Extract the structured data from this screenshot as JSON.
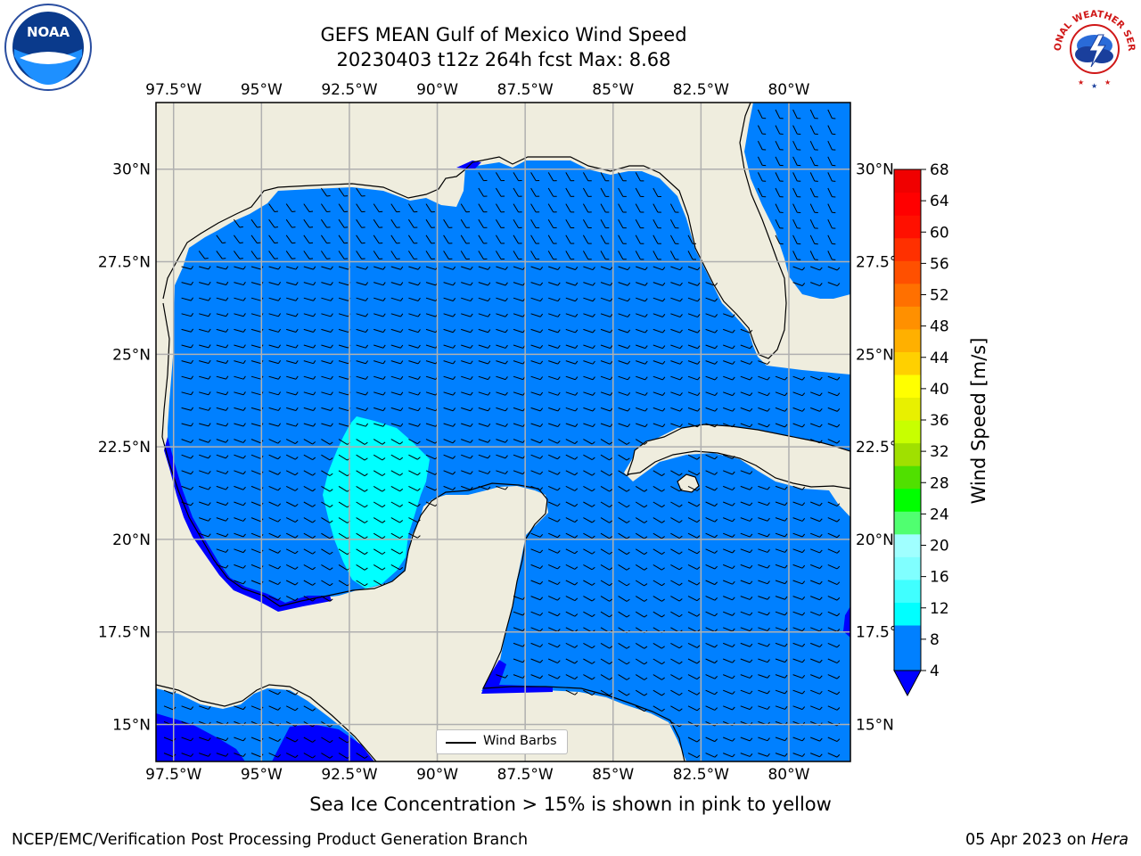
{
  "title": {
    "line1": "GEFS MEAN Gulf of Mexico Wind Speed",
    "line2": "20230403 t12z 264h fcst   Max: 8.68"
  },
  "map": {
    "lon_range": [
      -98.0,
      -78.25
    ],
    "lat_range": [
      14.0,
      31.8
    ],
    "lon_ticks": [
      "97.5°W",
      "95°W",
      "92.5°W",
      "90°W",
      "87.5°W",
      "85°W",
      "82.5°W",
      "80°W"
    ],
    "lon_tick_values": [
      -97.5,
      -95,
      -92.5,
      -90,
      -87.5,
      -85,
      -82.5,
      -80
    ],
    "lat_ticks": [
      "15°N",
      "17.5°N",
      "20°N",
      "22.5°N",
      "25°N",
      "27.5°N",
      "30°N"
    ],
    "lat_tick_values": [
      15,
      17.5,
      20,
      22.5,
      25,
      27.5,
      30
    ],
    "colors": {
      "land": "#efedde",
      "wind_4_8": "#0080ff",
      "wind_8_12": "#00ffff",
      "wind_below_4": "#0000ff",
      "gridline": "#b0b0b0",
      "coast": "#000000"
    }
  },
  "legend": {
    "label": "Wind Barbs"
  },
  "colorbar": {
    "label": "Wind Speed [m/s]",
    "ticks": [
      "4",
      "8",
      "12",
      "16",
      "20",
      "24",
      "28",
      "32",
      "36",
      "40",
      "44",
      "48",
      "52",
      "56",
      "60",
      "64",
      "68"
    ],
    "min": 4,
    "max": 68,
    "extend": "min",
    "colors": [
      "#0080ff",
      "#0080ff",
      "#00ffff",
      "#40ffff",
      "#80ffff",
      "#a0ffff",
      "#50ff70",
      "#00ff00",
      "#50e000",
      "#a0e000",
      "#c8ff00",
      "#e8f000",
      "#ffff00",
      "#ffd000",
      "#ffb000",
      "#ff9000",
      "#ff7000",
      "#ff5000",
      "#ff3000",
      "#ff1000",
      "#ff0000",
      "#f00000"
    ],
    "under_color": "#0000ff"
  },
  "caption": "Sea Ice Concentration > 15% is shown in pink to yellow",
  "footer": {
    "left": "NCEP/EMC/Verification Post Processing Product Generation Branch",
    "right_date": "05 Apr 2023 on ",
    "right_host": "Hera"
  },
  "logos": {
    "noaa_text": "NOAA",
    "nws_text": "NATIONAL WEATHER SERVICE"
  }
}
